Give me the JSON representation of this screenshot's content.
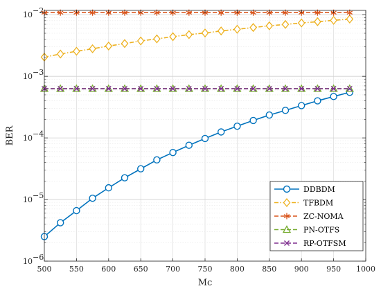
{
  "chart_data": {
    "type": "line",
    "title": "",
    "xlabel": "Mc",
    "ylabel": "BER",
    "xlim": [
      500,
      1000
    ],
    "ylim": [
      1e-06,
      0.02
    ],
    "yscale": "log",
    "grid": true,
    "legend_position": "bottom-right",
    "x_ticks": [
      500,
      550,
      600,
      650,
      700,
      750,
      800,
      850,
      900,
      950,
      1000
    ],
    "x_tick_labels": [
      "500",
      "550",
      "600",
      "650",
      "700",
      "750",
      "800",
      "850",
      "900",
      "950",
      "1000"
    ],
    "y_ticks": [
      1e-06,
      1e-05,
      0.0001,
      0.001,
      0.01
    ],
    "y_tick_labels": [
      {
        "base": "10",
        "exp": "−6"
      },
      {
        "base": "10",
        "exp": "−5"
      },
      {
        "base": "10",
        "exp": "−4"
      },
      {
        "base": "10",
        "exp": "−3"
      },
      {
        "base": "10",
        "exp": "−2"
      }
    ],
    "x": [
      500,
      525,
      550,
      575,
      600,
      625,
      650,
      675,
      700,
      725,
      750,
      775,
      800,
      825,
      850,
      875,
      900,
      925,
      950,
      975
    ],
    "series": [
      {
        "name": "DDBDM",
        "color": "#0072bd",
        "dash": "solid",
        "marker": "circle",
        "values": [
          2.5e-06,
          4.2e-06,
          6.6e-06,
          1.05e-05,
          1.55e-05,
          2.25e-05,
          3.15e-05,
          4.4e-05,
          5.8e-05,
          7.6e-05,
          9.8e-05,
          0.000125,
          0.000155,
          0.000192,
          0.000235,
          0.00028,
          0.000335,
          0.0004,
          0.00047,
          0.00055
        ]
      },
      {
        "name": "TFBDM",
        "color": "#edb120",
        "dash": "dashdot",
        "marker": "diamond",
        "values": [
          0.00205,
          0.0023,
          0.00255,
          0.0028,
          0.0031,
          0.0034,
          0.00375,
          0.00405,
          0.0044,
          0.00475,
          0.00505,
          0.00545,
          0.0058,
          0.0062,
          0.0066,
          0.00695,
          0.00735,
          0.0077,
          0.0081,
          0.0085
        ]
      },
      {
        "name": "ZC-NOMA",
        "color": "#d95319",
        "dash": "dashed",
        "marker": "asterisk",
        "values": [
          0.0108,
          0.0108,
          0.0108,
          0.0108,
          0.0108,
          0.0108,
          0.0108,
          0.0108,
          0.0108,
          0.0108,
          0.0108,
          0.0108,
          0.0108,
          0.0108,
          0.0108,
          0.0108,
          0.0108,
          0.0108,
          0.0108,
          0.0108
        ]
      },
      {
        "name": "PN-OTFS",
        "color": "#77ac30",
        "dash": "dashed",
        "marker": "triangle",
        "values": [
          0.00063,
          0.00063,
          0.00063,
          0.00063,
          0.00063,
          0.00063,
          0.00063,
          0.00063,
          0.00063,
          0.00063,
          0.00063,
          0.00063,
          0.00063,
          0.00063,
          0.00063,
          0.00063,
          0.00063,
          0.00063,
          0.00063,
          0.00063
        ]
      },
      {
        "name": "RP-OTFSM",
        "color": "#7e2f8e",
        "dash": "dashed",
        "marker": "x",
        "values": [
          0.00063,
          0.00063,
          0.00063,
          0.00063,
          0.00063,
          0.00063,
          0.00063,
          0.00063,
          0.00063,
          0.00063,
          0.00063,
          0.00063,
          0.00063,
          0.00063,
          0.00063,
          0.00063,
          0.00063,
          0.00063,
          0.00063,
          0.00063
        ]
      }
    ]
  }
}
